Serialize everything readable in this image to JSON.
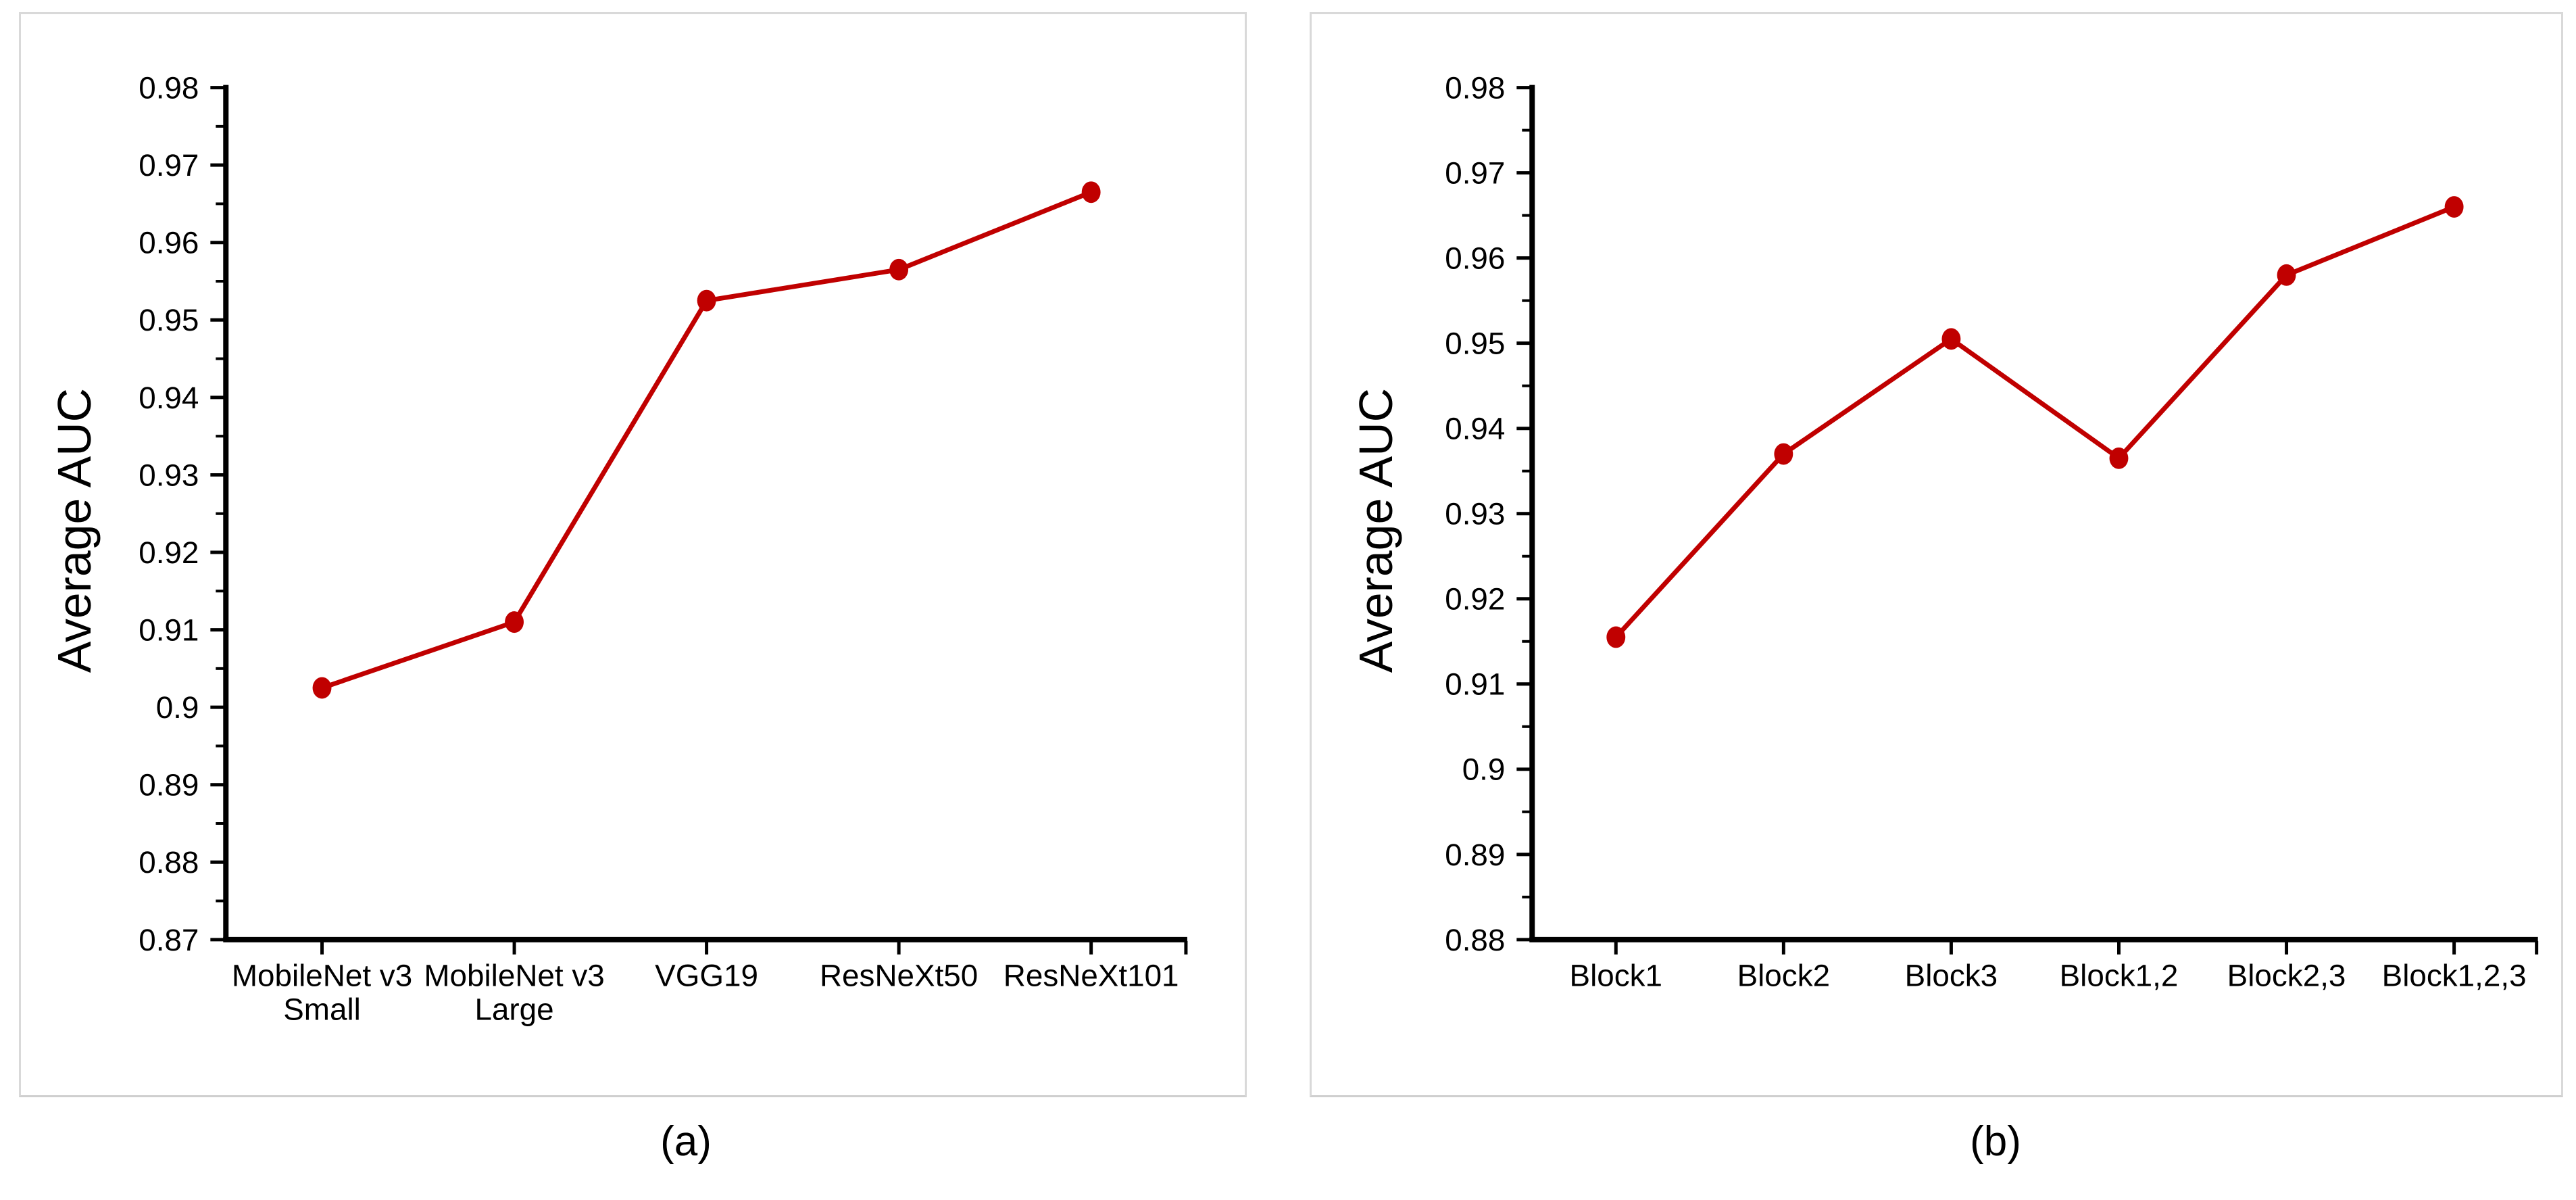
{
  "figure": {
    "background_color": "#ffffff",
    "panel_border_color": "#d9d9d9",
    "axis_color": "#000000",
    "text_color": "#000000"
  },
  "chart_data": [
    {
      "id": "a",
      "type": "line",
      "caption": "(a)",
      "title": "",
      "xlabel": "",
      "ylabel": "Average AUC",
      "categories": [
        "MobileNet v3 Small",
        "MobileNet v3 Large",
        "VGG19",
        "ResNeXt50",
        "ResNeXt101"
      ],
      "category_lines": [
        [
          "MobileNet v3",
          "Small"
        ],
        [
          "MobileNet v3",
          "Large"
        ],
        [
          "VGG19"
        ],
        [
          "ResNeXt50"
        ],
        [
          "ResNeXt101"
        ]
      ],
      "values": [
        0.9025,
        0.911,
        0.9525,
        0.9565,
        0.9665
      ],
      "ylim": [
        0.87,
        0.98
      ],
      "ytick_major": 0.01,
      "ytick_minor": 0.005,
      "grid": false,
      "legend": false,
      "line_color": "#c00000",
      "marker": "circle"
    },
    {
      "id": "b",
      "type": "line",
      "caption": "(b)",
      "title": "",
      "xlabel": "",
      "ylabel": "Average AUC",
      "categories": [
        "Block1",
        "Block2",
        "Block3",
        "Block1,2",
        "Block2,3",
        "Block1,2,3"
      ],
      "category_lines": [
        [
          "Block1"
        ],
        [
          "Block2"
        ],
        [
          "Block3"
        ],
        [
          "Block1,2"
        ],
        [
          "Block2,3"
        ],
        [
          "Block1,2,3"
        ]
      ],
      "values": [
        0.9155,
        0.937,
        0.9505,
        0.9365,
        0.958,
        0.966
      ],
      "ylim": [
        0.88,
        0.98
      ],
      "ytick_major": 0.01,
      "ytick_minor": 0.005,
      "grid": false,
      "legend": false,
      "line_color": "#c00000",
      "marker": "circle"
    }
  ]
}
